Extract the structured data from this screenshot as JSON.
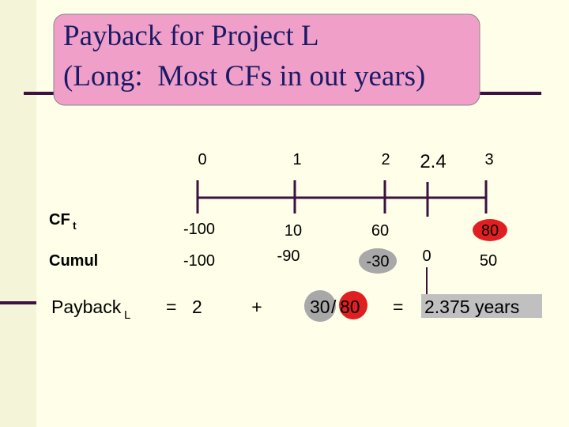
{
  "title": {
    "line1": "Payback for Project L",
    "line2": "(Long:  Most CFs in out years)"
  },
  "timeline": {
    "periods": [
      "0",
      "1",
      "2",
      "2.4",
      "3"
    ]
  },
  "rows": [
    {
      "label": "CF",
      "subscript": "t",
      "values": [
        "-100",
        "10",
        "60",
        "80"
      ]
    },
    {
      "label": "Cumul",
      "values": [
        "-100",
        "-90",
        "-30",
        "0",
        "50"
      ]
    }
  ],
  "payback": {
    "label": "Payback",
    "subscript": "L",
    "equals": "=",
    "base": "2",
    "plus": "+",
    "numerator": "30",
    "slash": "/",
    "denominator": "80",
    "equals_result": "=",
    "result": "2.375 years"
  }
}
